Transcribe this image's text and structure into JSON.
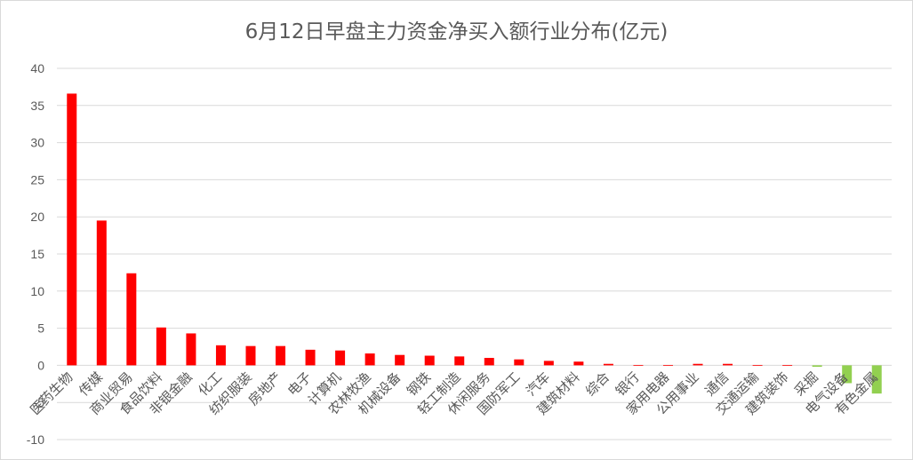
{
  "chart_data": {
    "type": "bar",
    "title": "6月12日早盘主力资金净买入额行业分布(亿元)",
    "xlabel": "",
    "ylabel": "",
    "ylim": [
      -10,
      40
    ],
    "yticks": [
      40,
      35,
      30,
      25,
      20,
      15,
      10,
      5,
      0,
      -5,
      -10
    ],
    "grid": true,
    "legend": "none",
    "positive_color": "#ff0000",
    "negative_color": "#92d050",
    "categories": [
      "医药生物",
      "传媒",
      "商业贸易",
      "食品饮料",
      "非银金融",
      "化工",
      "纺织服装",
      "房地产",
      "电子",
      "计算机",
      "农林牧渔",
      "机械设备",
      "钢铁",
      "轻工制造",
      "休闲服务",
      "国防军工",
      "汽车",
      "建筑材料",
      "综合",
      "银行",
      "家用电器",
      "公用事业",
      "通信",
      "交通运输",
      "建筑装饰",
      "采掘",
      "电气设备",
      "有色金属"
    ],
    "values": [
      36.6,
      19.5,
      12.4,
      5.1,
      4.3,
      2.7,
      2.6,
      2.6,
      2.1,
      2.0,
      1.6,
      1.4,
      1.3,
      1.2,
      1.0,
      0.8,
      0.6,
      0.5,
      0.2,
      0.05,
      0.05,
      0.2,
      0.2,
      0.05,
      0.05,
      -0.2,
      -2.4,
      -3.8
    ]
  }
}
